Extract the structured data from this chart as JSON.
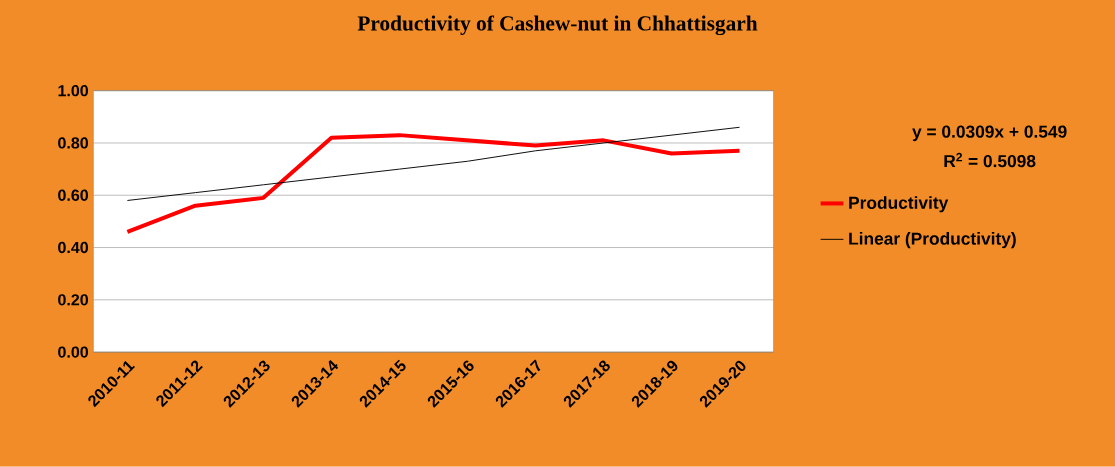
{
  "chart_data": {
    "type": "line",
    "title": "Productivity of Cashew-nut in Chhattisgarh",
    "categories": [
      "2010-11",
      "2011-12",
      "2012-13",
      "2013-14",
      "2014-15",
      "2015-16",
      "2016-17",
      "2017-18",
      "2018-19",
      "2019-20"
    ],
    "series": [
      {
        "name": "Productivity",
        "color": "#ff0000",
        "values": [
          0.46,
          0.56,
          0.59,
          0.82,
          0.83,
          0.81,
          0.79,
          0.81,
          0.76,
          0.77
        ]
      },
      {
        "name": "Linear (Productivity)",
        "color": "#000000",
        "values": [
          0.58,
          0.61,
          0.64,
          0.67,
          0.7,
          0.73,
          0.77,
          0.8,
          0.83,
          0.86
        ]
      }
    ],
    "ylim": [
      0,
      1
    ],
    "yticks": [
      {
        "value": 0,
        "label": "0.00"
      },
      {
        "value": 0.2,
        "label": "0.20"
      },
      {
        "value": 0.4,
        "label": "0.40"
      },
      {
        "value": 0.6,
        "label": "0.60"
      },
      {
        "value": 0.8,
        "label": "0.80"
      },
      {
        "value": 1,
        "label": "1.00"
      }
    ],
    "grid": "y",
    "legend": "right",
    "marker": "none",
    "annotations": [
      "y = 0.0309x + 0.549",
      "R$^{2}$ = 0.5098"
    ]
  }
}
